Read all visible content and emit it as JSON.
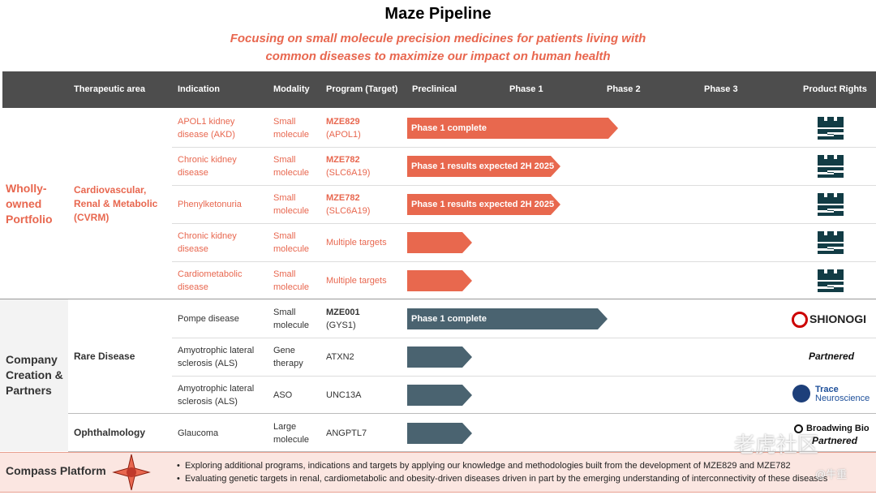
{
  "header": {
    "title": "Maze Pipeline",
    "subtitle": [
      "Focusing on small molecule precision medicines for patients living with",
      "common diseases to maximize our impact on human health"
    ]
  },
  "columns": [
    "Therapeutic area",
    "Indication",
    "Modality",
    "Program (Target)",
    "Preclinical",
    "Phase 1",
    "Phase 2",
    "Phase 3",
    "Product Rights"
  ],
  "groups": [
    {
      "name": "Wholly-owned Portfolio",
      "areas": [
        {
          "name": "Cardiovascular, Renal & Metabolic (CVRM)",
          "rows": [
            {
              "indication": "APOL1 kidney disease (AKD)",
              "modality": "Small molecule",
              "program": "MZE829",
              "target": "(APOL1)",
              "bar_label": "Phase 1 complete"
            },
            {
              "indication": "Chronic kidney disease",
              "modality": "Small molecule",
              "program": "MZE782",
              "target": "(SLC6A19)",
              "bar_label": "Phase 1 results expected 2H 2025"
            },
            {
              "indication": "Phenylketonuria",
              "modality": "Small molecule",
              "program": "MZE782",
              "target": "(SLC6A19)",
              "bar_label": "Phase 1 results expected 2H 2025"
            },
            {
              "indication": "Chronic kidney disease",
              "modality": "Small molecule",
              "target": "Multiple targets"
            },
            {
              "indication": "Cardiometabolic disease",
              "modality": "Small molecule",
              "target": "Multiple targets"
            }
          ]
        }
      ]
    },
    {
      "name": "Company Creation & Partners",
      "areas": [
        {
          "name": "Rare Disease",
          "rows": [
            {
              "indication": "Pompe disease",
              "modality": "Small molecule",
              "program": "MZE001",
              "target": "(GYS1)",
              "bar_label": "Phase 1 complete",
              "rights": [
                "SHIONOGI"
              ]
            },
            {
              "indication": "Amyotrophic lateral sclerosis (ALS)",
              "modality": "Gene therapy",
              "target": "ATXN2",
              "rights": [
                "Partnered"
              ]
            },
            {
              "indication": "Amyotrophic lateral sclerosis (ALS)",
              "modality": "ASO",
              "target": "UNC13A",
              "rights": [
                "Trace",
                "Neuroscience"
              ]
            }
          ]
        },
        {
          "name": "Ophthalmology",
          "rows": [
            {
              "indication": "Glaucoma",
              "modality": "Large molecule",
              "target": "ANGPTL7",
              "rights": [
                "Broadwing Bio",
                "Partnered"
              ]
            }
          ]
        }
      ]
    }
  ],
  "compass": {
    "name": "Compass Platform",
    "bullets": [
      "Exploring additional programs, indications and targets by applying our knowledge and methodologies built from the development of MZE829 and MZE782",
      "Evaluating genetic targets in renal, cardiometabolic and obesity-driven diseases driven in part by the emerging understanding of interconnectivity of these diseases"
    ]
  },
  "watermark": [
    "老虎社区",
    "@牛重"
  ]
}
